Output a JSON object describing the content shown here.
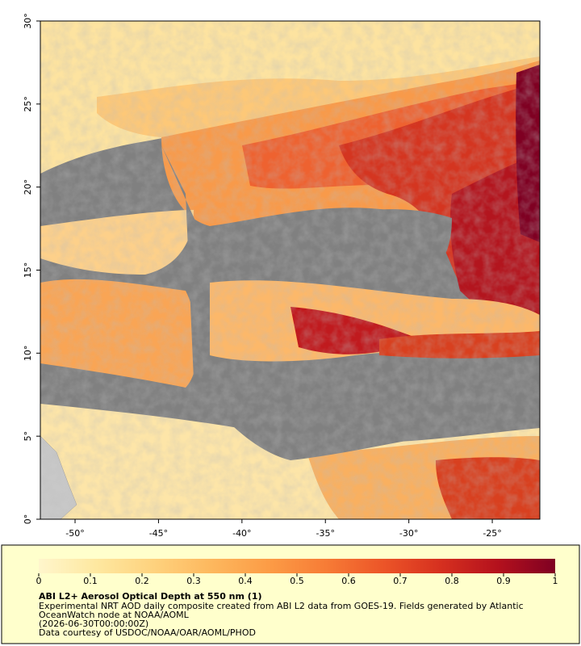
{
  "map": {
    "xlim": [
      -52.08,
      -22.15
    ],
    "ylim": [
      0,
      30
    ],
    "xticks": [
      {
        "value": -50,
        "label": "-50°"
      },
      {
        "value": -45,
        "label": "-45°"
      },
      {
        "value": -40,
        "label": "-40°"
      },
      {
        "value": -35,
        "label": "-35°"
      },
      {
        "value": -30,
        "label": "-30°"
      },
      {
        "value": -25,
        "label": "-25°"
      }
    ],
    "yticks": [
      {
        "value": 0,
        "label": "0°"
      },
      {
        "value": 5,
        "label": "5°"
      },
      {
        "value": 10,
        "label": "10°"
      },
      {
        "value": 15,
        "label": "15°"
      },
      {
        "value": 20,
        "label": "20°"
      },
      {
        "value": 25,
        "label": "25°"
      },
      {
        "value": 30,
        "label": "30°"
      }
    ]
  },
  "colorbar": {
    "lim": [
      0,
      1
    ],
    "ticks": [
      0,
      0.1,
      0.2,
      0.3,
      0.4,
      0.5,
      0.6,
      0.7,
      0.8,
      0.9,
      1
    ],
    "colors": [
      "#fff6cc",
      "#fee8a0",
      "#fed27e",
      "#fdb85e",
      "#fc9c46",
      "#f77c36",
      "#ec5528",
      "#d6301f",
      "#b4111d",
      "#7f0022"
    ]
  },
  "caption": {
    "title": "ABI L2+ Aerosol Optical Depth at 550 nm (1)",
    "lines": [
      "Experimental NRT AOD daily composite created from ABI L2 data from GOES-19. Fields generated by Atlantic",
      "OceanWatch node at NOAA/AOML",
      "(2026-06-30T00:00:00Z)",
      "Data courtesy of USDOC/NOAA/OAR/AOML/PHOD"
    ]
  }
}
